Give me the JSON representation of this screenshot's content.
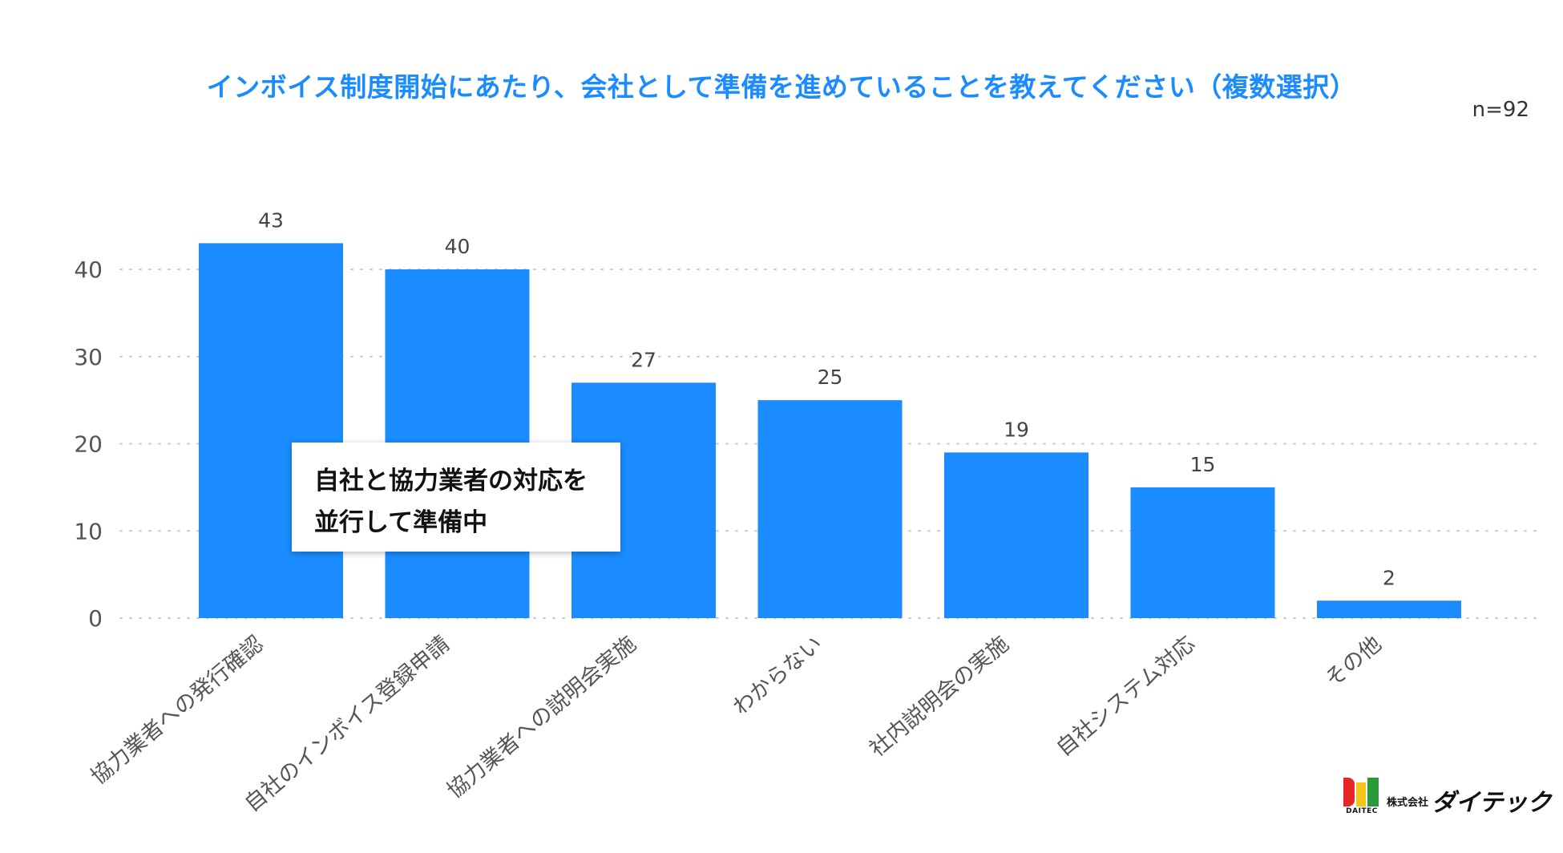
{
  "title": "インボイス制度開始にあたり、会社として準備を進めていることを教えてください（複数選択）",
  "sample_size": "n=92",
  "callout": {
    "line1": "自社と協力業者の対応を",
    "line2": "並行して準備中"
  },
  "logo": {
    "mark_text": "DAITEC",
    "company_prefix": "株式会社",
    "company_name": "ダイテック"
  },
  "colors": {
    "bar": "#1a8cff",
    "title": "#1a8cff",
    "grid": "#c8c8c8",
    "axis_text": "#555555"
  },
  "chart_data": {
    "type": "bar",
    "categories": [
      "協力業者への発行確認",
      "自社のインボイス登録申請",
      "協力業者への説明会実施",
      "わからない",
      "社内説明会の実施",
      "自社システム対応",
      "その他"
    ],
    "values": [
      43,
      40,
      27,
      25,
      19,
      15,
      2
    ],
    "yticks": [
      0,
      10,
      20,
      30,
      40
    ],
    "ylim": [
      0,
      40
    ],
    "grid": true,
    "gridstyle": "dotted",
    "xlabel_rotation": "angled",
    "data_labels": true
  }
}
